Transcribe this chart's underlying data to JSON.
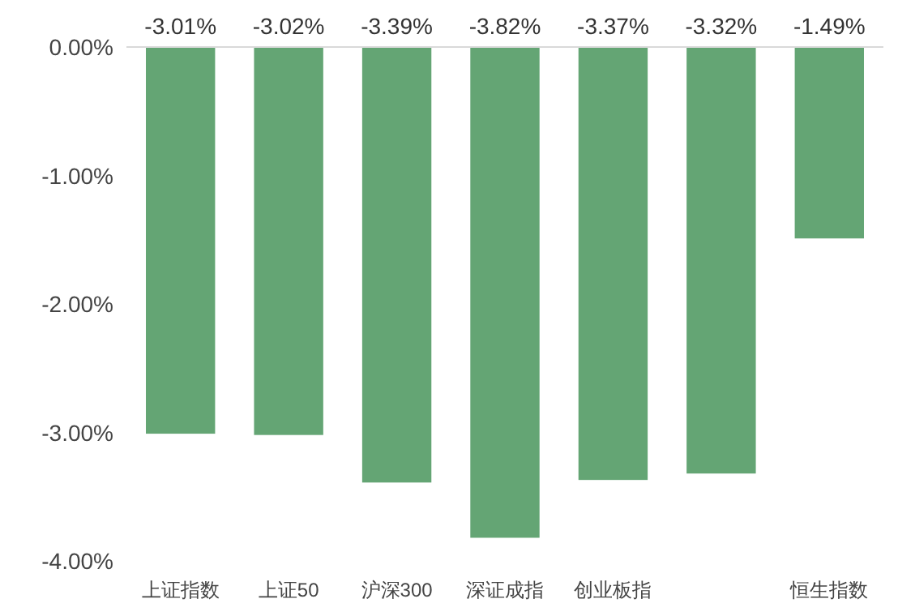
{
  "chart_data": {
    "type": "bar",
    "categories": [
      "上证指数",
      "上证50",
      "沪深300",
      "深证成指",
      "创业板指",
      null,
      "恒生指数"
    ],
    "values": [
      -3.01,
      -3.02,
      -3.39,
      -3.82,
      -3.37,
      -3.32,
      -1.49
    ],
    "value_labels": [
      "-3.01%",
      "-3.02%",
      "-3.39%",
      "-3.82%",
      "-3.37%",
      "-3.32%",
      "-1.49%"
    ],
    "color": "#64a574",
    "ylim": [
      -4,
      0
    ],
    "yticks": [
      {
        "value": 0,
        "label": "0.00%"
      },
      {
        "value": -1,
        "label": "-1.00%"
      },
      {
        "value": -2,
        "label": "-2.00%"
      },
      {
        "value": -3,
        "label": "-3.00%"
      },
      {
        "value": -4,
        "label": "-4.00%"
      }
    ]
  }
}
